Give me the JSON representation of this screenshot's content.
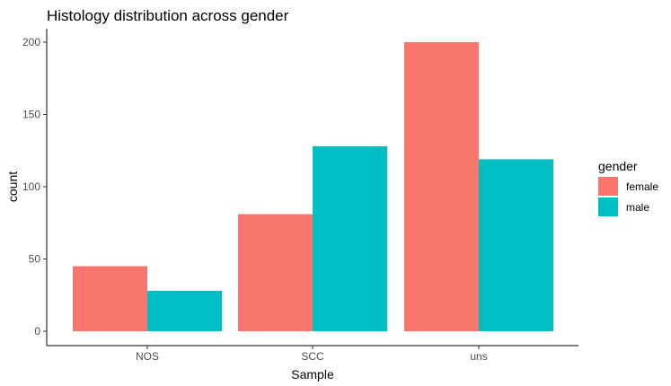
{
  "chart_data": {
    "type": "bar",
    "title": "Histology distribution across gender",
    "xlabel": "Sample",
    "ylabel": "count",
    "categories": [
      "NOS",
      "SCC",
      "uns"
    ],
    "series": [
      {
        "name": "female",
        "color": "#F8766D",
        "values": [
          45,
          81,
          200
        ]
      },
      {
        "name": "male",
        "color": "#00BFC4",
        "values": [
          28,
          128,
          119
        ]
      }
    ],
    "yticks": [
      0,
      50,
      100,
      150,
      200
    ],
    "ylim": [
      0,
      210
    ],
    "grid": false,
    "legend": {
      "title": "gender",
      "position": "right"
    }
  }
}
